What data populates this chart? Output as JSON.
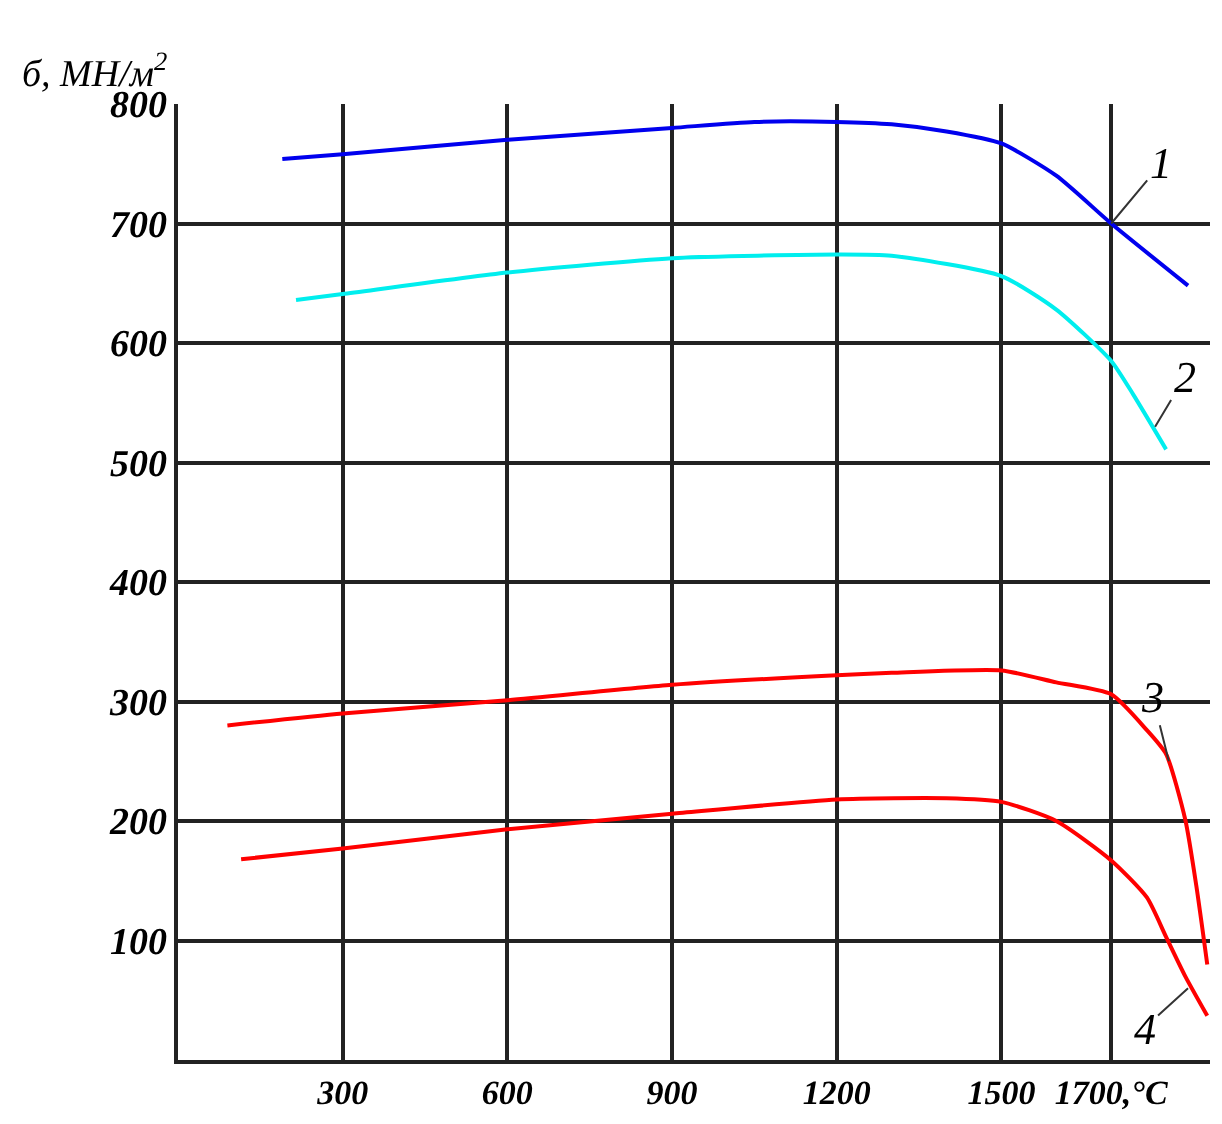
{
  "chart_data": {
    "type": "line",
    "ylabel": "б, МН/м$^{2}$",
    "series": [
      {
        "color": "#0000ee",
        "x": [
          190,
          300,
          600,
          900,
          1050,
          1200,
          1300,
          1400,
          1500,
          1600,
          1700,
          1840
        ],
        "values": [
          754,
          758,
          770,
          780,
          785,
          785,
          783,
          777,
          767,
          740,
          700,
          648
        ]
      },
      {
        "color": "#00eeee",
        "x": [
          215,
          300,
          600,
          900,
          1200,
          1300,
          1500,
          1600,
          1700,
          1740,
          1800
        ],
        "values": [
          636,
          641,
          659,
          671,
          674,
          673,
          656,
          628,
          585,
          557,
          511
        ]
      },
      {
        "color": "#ff0000",
        "x": [
          90,
          300,
          600,
          900,
          1200,
          1300,
          1500,
          1600,
          1700,
          1765,
          1800,
          1835,
          1855,
          1875
        ],
        "values": [
          280,
          290,
          301,
          314,
          322,
          324,
          326,
          316,
          306,
          276,
          256,
          201,
          146,
          80
        ]
      },
      {
        "color": "#ff0000",
        "x": [
          115,
          300,
          600,
          900,
          1200,
          1400,
          1500,
          1600,
          1700,
          1765,
          1800,
          1835,
          1875
        ],
        "values": [
          168,
          177,
          193,
          206,
          218,
          219,
          216,
          200,
          167,
          136,
          103,
          70,
          37
        ]
      }
    ],
    "annotations": [
      {
        "text": "1",
        "x": 1700,
        "y": 700
      },
      {
        "text": "2",
        "x": 1780,
        "y": 530
      },
      {
        "text": "3",
        "x": 1805,
        "y": 250
      },
      {
        "text": "4",
        "x": 1840,
        "y": 60
      }
    ],
    "xlim": [
      0,
      1880
    ],
    "ylim": [
      0,
      800
    ],
    "xticks": [
      300,
      600,
      900,
      1200,
      1500,
      {
        "value": 1700,
        "label": "1700,°C"
      }
    ],
    "yticks": [
      100,
      200,
      300,
      400,
      500,
      600,
      700,
      800
    ],
    "grid": true,
    "legend": false
  }
}
